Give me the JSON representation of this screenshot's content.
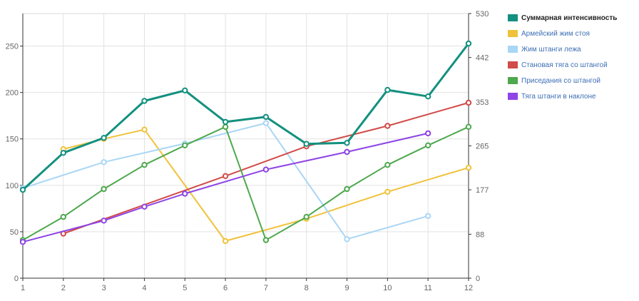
{
  "chart_data": {
    "type": "line",
    "title": "",
    "xlabel": "",
    "ylabel": "",
    "x": [
      1,
      2,
      3,
      4,
      5,
      6,
      7,
      8,
      9,
      10,
      11,
      12
    ],
    "x_ticks": [
      "1",
      "2",
      "3",
      "4",
      "5",
      "6",
      "7",
      "8",
      "9",
      "10",
      "11",
      "12"
    ],
    "ylim_left": [
      0,
      285
    ],
    "y_ticks_left": [
      "0",
      "50",
      "100",
      "150",
      "200",
      "250"
    ],
    "ylim_right": [
      0,
      530
    ],
    "y_ticks_right": [
      "0",
      "88",
      "177",
      "265",
      "353",
      "442",
      "530"
    ],
    "grid": true,
    "legend_position": "right",
    "series": [
      {
        "name": "Суммарная интенсивность",
        "axis": "right",
        "color": "#13907f",
        "values": [
          177,
          251,
          281,
          355,
          376,
          313,
          323,
          269,
          271,
          377,
          364,
          470
        ]
      },
      {
        "name": "Армейский жим стоя",
        "axis": "left",
        "color": "#f0c23b",
        "values": [
          null,
          139,
          150,
          160,
          null,
          40,
          null,
          64,
          null,
          93,
          null,
          119
        ]
      },
      {
        "name": "Жим штанги лежа",
        "axis": "left",
        "color": "#a9d6f5",
        "values": [
          97,
          null,
          125,
          null,
          145,
          null,
          167,
          null,
          42,
          null,
          67,
          null
        ]
      },
      {
        "name": "Становая тяга со штангой",
        "axis": "left",
        "color": "#d14b48",
        "values": [
          null,
          48,
          null,
          null,
          null,
          110,
          null,
          142,
          null,
          164,
          null,
          189
        ]
      },
      {
        "name": "Приседания со штангой",
        "axis": "left",
        "color": "#4ea84e",
        "values": [
          41,
          66,
          96,
          122,
          143,
          163,
          41,
          66,
          96,
          122,
          143,
          163
        ]
      },
      {
        "name": "Тяга штанги в наклоне",
        "axis": "left",
        "color": "#8e44e6",
        "values": [
          39,
          null,
          62,
          77,
          91,
          null,
          117,
          null,
          136,
          null,
          156,
          null
        ]
      }
    ]
  }
}
